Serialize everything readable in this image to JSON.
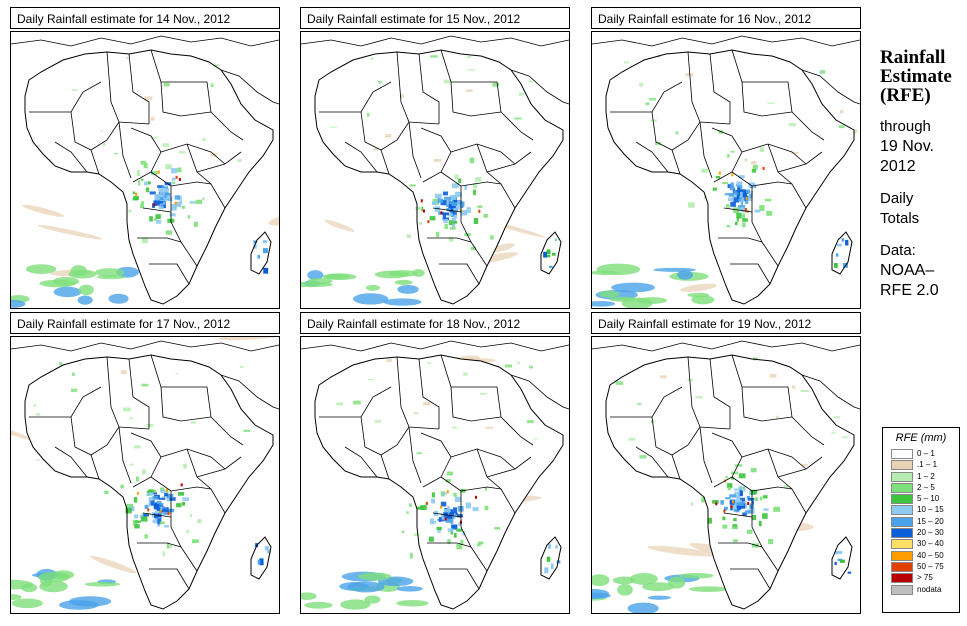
{
  "panels": [
    {
      "title": "Daily Rainfall estimate for  14 Nov., 2012",
      "seed": 14
    },
    {
      "title": "Daily Rainfall estimate for  15 Nov., 2012",
      "seed": 15
    },
    {
      "title": "Daily Rainfall estimate for  16 Nov., 2012",
      "seed": 16
    },
    {
      "title": "Daily Rainfall estimate for  17 Nov., 2012",
      "seed": 17
    },
    {
      "title": "Daily Rainfall estimate for  18 Nov., 2012",
      "seed": 18
    },
    {
      "title": "Daily Rainfall estimate for  19 Nov., 2012",
      "seed": 19
    }
  ],
  "sidebar": {
    "title1": "Rainfall",
    "title2": "Estimate",
    "title3": "(RFE)",
    "through": "through",
    "date1": "19 Nov.",
    "date2": "2012",
    "daily": "Daily",
    "totals": "Totals",
    "data_label": "Data:",
    "source1": "NOAA–",
    "source2": "RFE 2.0"
  },
  "legend": {
    "title": "RFE (mm)",
    "items": [
      {
        "label": "0 – 1",
        "color": "#ffffff"
      },
      {
        "label": ".1 – 1",
        "color": "#e8d2b4"
      },
      {
        "label": "1 – 2",
        "color": "#b6ecb0"
      },
      {
        "label": "2 – 5",
        "color": "#7ee07a"
      },
      {
        "label": "5 – 10",
        "color": "#3cc43c"
      },
      {
        "label": "10 – 15",
        "color": "#8ecaf2"
      },
      {
        "label": "15 – 20",
        "color": "#4aa2ea"
      },
      {
        "label": "20 – 30",
        "color": "#0b5ed8"
      },
      {
        "label": "30 – 40",
        "color": "#ffe066"
      },
      {
        "label": "40 – 50",
        "color": "#ff9c00"
      },
      {
        "label": "50 – 75",
        "color": "#e04000"
      },
      {
        "label": "> 75",
        "color": "#b80000"
      },
      {
        "label": "nodata",
        "color": "#bfbfbf"
      }
    ]
  }
}
